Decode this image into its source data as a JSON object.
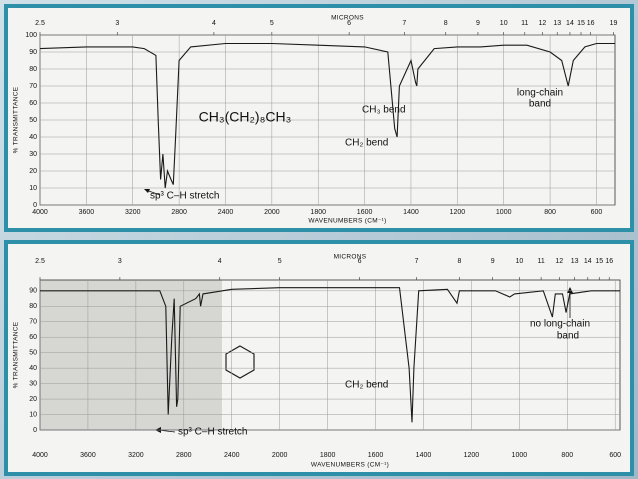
{
  "chart_data": [
    {
      "type": "line",
      "x2_axis_title": "MICRONS",
      "x_axis_title": "WAVENUMBERS (CM⁻¹)",
      "y_axis_title": "% TRANSMITTANCE",
      "xlim": [
        4000,
        520
      ],
      "x_scale_break": 2000,
      "xticks": [
        4000,
        3600,
        3200,
        2800,
        2400,
        2000,
        1800,
        1600,
        1400,
        1200,
        1000,
        800,
        600
      ],
      "x2ticks": [
        2.5,
        3,
        4,
        5,
        6,
        7,
        8,
        9,
        10,
        11,
        12,
        13,
        14,
        15,
        16,
        19
      ],
      "ylim": [
        0,
        100
      ],
      "yticks": [
        0,
        10,
        20,
        30,
        40,
        50,
        60,
        70,
        80,
        90,
        100
      ],
      "grid": true,
      "series": [
        {
          "color": "#1a1a1a",
          "x": [
            4000,
            3600,
            3200,
            3100,
            3000,
            2980,
            2960,
            2940,
            2920,
            2900,
            2870,
            2850,
            2830,
            2800,
            2700,
            2400,
            2000,
            1800,
            1600,
            1500,
            1470,
            1460,
            1450,
            1400,
            1380,
            1375,
            1370,
            1300,
            1200,
            1100,
            1000,
            900,
            800,
            750,
            722,
            700,
            650,
            600,
            520
          ],
          "values": [
            92,
            93,
            93,
            92,
            88,
            50,
            15,
            30,
            10,
            20,
            15,
            12,
            40,
            85,
            93,
            95,
            95,
            94,
            93,
            90,
            45,
            40,
            70,
            85,
            72,
            70,
            80,
            92,
            93,
            93,
            94,
            94,
            90,
            85,
            70,
            85,
            93,
            95,
            95
          ]
        }
      ],
      "annotations": [
        "CH₃(CH₂)₈CH₃",
        "sp³ C–H stretch",
        "CH₂ bend",
        "CH₃ bend",
        "long-chain",
        "band"
      ]
    },
    {
      "type": "line",
      "x2_axis_title": "MICRONS",
      "x_axis_title": "WAVENUMBERS (CM⁻¹)",
      "y_axis_title": "% TRANSMITTANCE",
      "xlim": [
        4000,
        580
      ],
      "x_scale_break": 2000,
      "xticks": [
        4000,
        3600,
        3200,
        2800,
        2400,
        2000,
        1800,
        1600,
        1400,
        1200,
        1000,
        800,
        600
      ],
      "x2ticks": [
        2.5,
        3,
        4,
        5,
        6,
        7,
        8,
        9,
        10,
        11,
        12,
        13,
        14,
        15,
        16
      ],
      "ylim": [
        0,
        97
      ],
      "yticks": [
        0,
        10,
        20,
        30,
        40,
        50,
        60,
        70,
        80,
        90
      ],
      "grid": true,
      "series": [
        {
          "color": "#1a1a1a",
          "x": [
            4000,
            3000,
            2950,
            2930,
            2900,
            2880,
            2860,
            2850,
            2830,
            2700,
            2670,
            2660,
            2640,
            2400,
            2000,
            1500,
            1460,
            1448,
            1440,
            1420,
            1300,
            1260,
            1250,
            1100,
            1040,
            1020,
            900,
            862,
            850,
            820,
            805,
            790,
            700,
            580
          ],
          "values": [
            90,
            90,
            80,
            10,
            60,
            85,
            15,
            20,
            80,
            85,
            88,
            80,
            88,
            91,
            92,
            92,
            40,
            5,
            40,
            90,
            91,
            82,
            90,
            90,
            86,
            88,
            90,
            73,
            88,
            88,
            76,
            88,
            90,
            90
          ]
        }
      ],
      "annotations": [
        "sp³ C–H stretch",
        "CH₂ bend",
        "no long-chain",
        "band"
      ]
    }
  ]
}
